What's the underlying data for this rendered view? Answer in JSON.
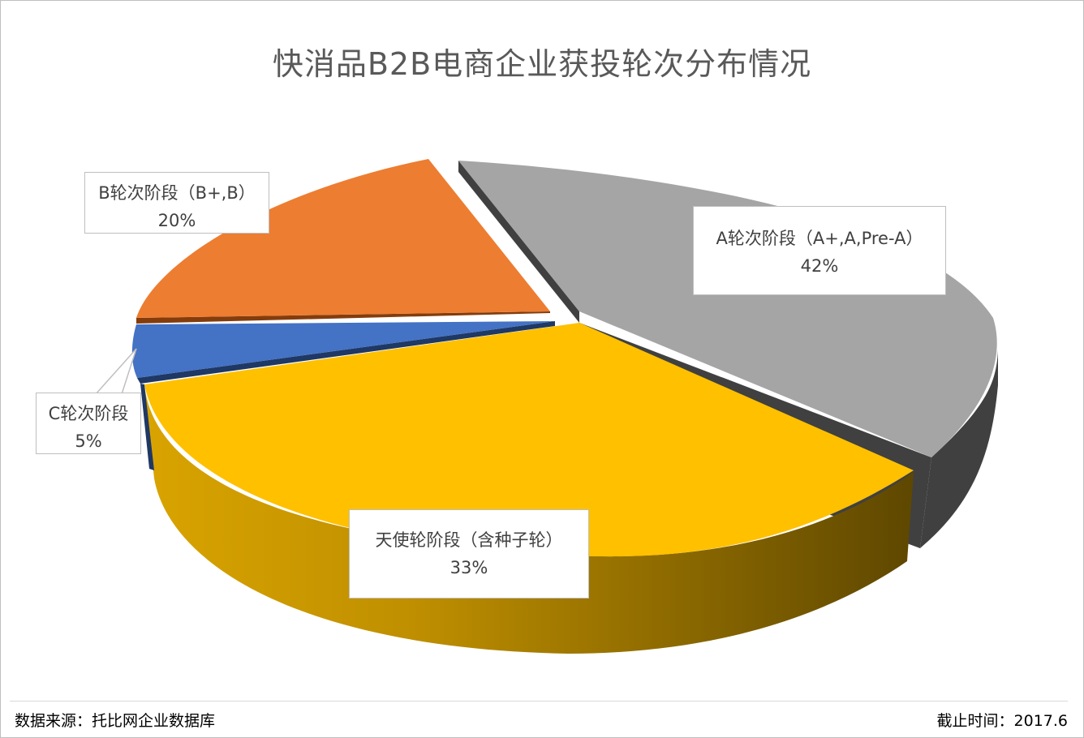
{
  "chart_data": {
    "type": "pie",
    "title": "快消品B2B电商企业获投轮次分布情况",
    "slices": [
      {
        "label": "A轮次阶段（A+,A,Pre-A）",
        "value_label": "42%",
        "value": 42,
        "color": "#a5a5a5"
      },
      {
        "label": "天使轮阶段（含种子轮）",
        "value_label": "33%",
        "value": 33,
        "color": "#ffc000"
      },
      {
        "label": "C轮次阶段",
        "value_label": "5%",
        "value": 5,
        "color": "#4472c4"
      },
      {
        "label": "B轮次阶段（B+,B）",
        "value_label": "20%",
        "value": 20,
        "color": "#ed7d31"
      }
    ]
  },
  "footer": {
    "source": "数据来源：托比网企业数据库",
    "cutoff": "截止时间：2017.6"
  }
}
